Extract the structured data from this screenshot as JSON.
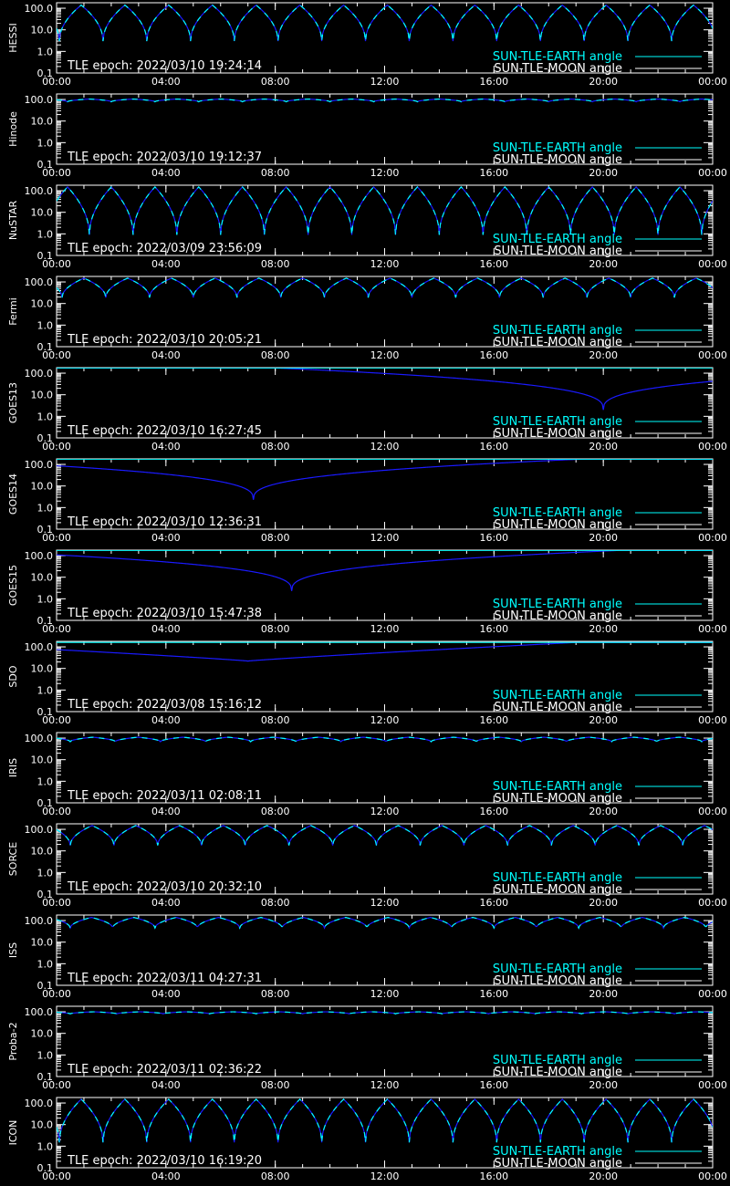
{
  "colors": {
    "background": "#000000",
    "axes": "#ffffff",
    "earth_angle": "#00ffff",
    "moon_angle": "#1a1aff",
    "moon_legend": "#ffffff"
  },
  "chart_data": [
    {
      "type": "line",
      "panel_label": "HESSI",
      "tle_epoch": "TLE epoch: 2022/03/10 19:24:14",
      "x_ticks": [
        "00:00",
        "04:00",
        "08:00",
        "12:00",
        "16:00",
        "20:00",
        "00:00"
      ],
      "y_ticks": [
        "100.0",
        "10.0",
        "1.0",
        "0.1"
      ],
      "y_scale": "log",
      "ylim": [
        0.1,
        180
      ],
      "xlim_hours": [
        0,
        24
      ],
      "legend_location": "bottom-right",
      "series": [
        {
          "name": "SUN-TLE-EARTH angle",
          "color": "#00ffff",
          "profile": "orbital_dips",
          "period_hours": 1.6,
          "phase_hours": 0.1,
          "min_value": 3.0,
          "max_value": 140
        },
        {
          "name": "SUN-TLE-MOON angle",
          "color": "#1a1aff",
          "profile": "same_as_earth"
        }
      ]
    },
    {
      "type": "line",
      "panel_label": "Hinode",
      "tle_epoch": "TLE epoch: 2022/03/10 19:12:37",
      "x_ticks": [
        "00:00",
        "04:00",
        "08:00",
        "12:00",
        "16:00",
        "20:00",
        "00:00"
      ],
      "y_ticks": [
        "100.0",
        "10.0",
        "1.0",
        "0.1"
      ],
      "y_scale": "log",
      "ylim": [
        0.1,
        180
      ],
      "xlim_hours": [
        0,
        24
      ],
      "legend_location": "bottom-right",
      "series": [
        {
          "name": "SUN-TLE-EARTH angle",
          "color": "#00ffff",
          "profile": "orbital_dips",
          "period_hours": 1.6,
          "phase_hours": 0.4,
          "min_value": 78,
          "max_value": 105
        },
        {
          "name": "SUN-TLE-MOON angle",
          "color": "#1a1aff",
          "profile": "same_as_earth"
        }
      ]
    },
    {
      "type": "line",
      "panel_label": "NuSTAR",
      "tle_epoch": "TLE epoch: 2022/03/09 23:56:09",
      "x_ticks": [
        "00:00",
        "04:00",
        "08:00",
        "12:00",
        "16:00",
        "20:00",
        "00:00"
      ],
      "y_ticks": [
        "100.0",
        "10.0",
        "1.0",
        "0.1"
      ],
      "y_scale": "log",
      "ylim": [
        0.1,
        180
      ],
      "xlim_hours": [
        0,
        24
      ],
      "legend_location": "bottom-right",
      "series": [
        {
          "name": "SUN-TLE-EARTH angle",
          "color": "#00ffff",
          "profile": "orbital_dips",
          "period_hours": 1.6,
          "phase_hours": 1.2,
          "min_value": 0.9,
          "max_value": 150
        },
        {
          "name": "SUN-TLE-MOON angle",
          "color": "#1a1aff",
          "profile": "same_as_earth"
        }
      ]
    },
    {
      "type": "line",
      "panel_label": "Fermi",
      "tle_epoch": "TLE epoch: 2022/03/10 20:05:21",
      "x_ticks": [
        "00:00",
        "04:00",
        "08:00",
        "12:00",
        "16:00",
        "20:00",
        "00:00"
      ],
      "y_ticks": [
        "100.0",
        "10.0",
        "1.0",
        "0.1"
      ],
      "y_scale": "log",
      "ylim": [
        0.1,
        180
      ],
      "xlim_hours": [
        0,
        24
      ],
      "legend_location": "bottom-right",
      "series": [
        {
          "name": "SUN-TLE-EARTH angle",
          "color": "#00ffff",
          "profile": "orbital_dips",
          "period_hours": 1.6,
          "phase_hours": 0.2,
          "min_value": 19,
          "max_value": 150
        },
        {
          "name": "SUN-TLE-MOON angle",
          "color": "#1a1aff",
          "profile": "same_as_earth"
        }
      ]
    },
    {
      "type": "line",
      "panel_label": "GOES13",
      "tle_epoch": "TLE epoch: 2022/03/10 16:27:45",
      "x_ticks": [
        "00:00",
        "04:00",
        "08:00",
        "12:00",
        "16:00",
        "20:00",
        "00:00"
      ],
      "y_ticks": [
        "100.0",
        "10.0",
        "1.0",
        "0.1"
      ],
      "y_scale": "log",
      "ylim": [
        0.1,
        180
      ],
      "xlim_hours": [
        0,
        24
      ],
      "legend_location": "bottom-right",
      "series": [
        {
          "name": "SUN-TLE-EARTH angle",
          "color": "#00ffff",
          "profile": "flat",
          "value": 175
        },
        {
          "name": "SUN-TLE-MOON angle",
          "color": "#1a1aff",
          "profile": "single_dip",
          "dip_hour": 20.0,
          "min_value": 2.0,
          "max_value": 175
        }
      ]
    },
    {
      "type": "line",
      "panel_label": "GOES14",
      "tle_epoch": "TLE epoch: 2022/03/10 12:36:31",
      "x_ticks": [
        "00:00",
        "04:00",
        "08:00",
        "12:00",
        "16:00",
        "20:00",
        "00:00"
      ],
      "y_ticks": [
        "100.0",
        "10.0",
        "1.0",
        "0.1"
      ],
      "y_scale": "log",
      "ylim": [
        0.1,
        180
      ],
      "xlim_hours": [
        0,
        24
      ],
      "legend_location": "bottom-right",
      "series": [
        {
          "name": "SUN-TLE-EARTH angle",
          "color": "#00ffff",
          "profile": "flat",
          "value": 175
        },
        {
          "name": "SUN-TLE-MOON angle",
          "color": "#1a1aff",
          "profile": "single_dip",
          "dip_hour": 7.2,
          "min_value": 2.3,
          "max_value": 175
        }
      ]
    },
    {
      "type": "line",
      "panel_label": "GOES15",
      "tle_epoch": "TLE epoch: 2022/03/10 15:47:38",
      "x_ticks": [
        "00:00",
        "04:00",
        "08:00",
        "12:00",
        "16:00",
        "20:00",
        "00:00"
      ],
      "y_ticks": [
        "100.0",
        "10.0",
        "1.0",
        "0.1"
      ],
      "y_scale": "log",
      "ylim": [
        0.1,
        180
      ],
      "xlim_hours": [
        0,
        24
      ],
      "legend_location": "bottom-right",
      "series": [
        {
          "name": "SUN-TLE-EARTH angle",
          "color": "#00ffff",
          "profile": "flat",
          "value": 175
        },
        {
          "name": "SUN-TLE-MOON angle",
          "color": "#1a1aff",
          "profile": "single_dip",
          "dip_hour": 8.6,
          "min_value": 2.3,
          "max_value": 175
        }
      ]
    },
    {
      "type": "line",
      "panel_label": "SDO",
      "tle_epoch": "TLE epoch: 2022/03/08 15:16:12",
      "x_ticks": [
        "00:00",
        "04:00",
        "08:00",
        "12:00",
        "16:00",
        "20:00",
        "00:00"
      ],
      "y_ticks": [
        "100.0",
        "10.0",
        "1.0",
        "0.1"
      ],
      "y_scale": "log",
      "ylim": [
        0.1,
        180
      ],
      "xlim_hours": [
        0,
        24
      ],
      "legend_location": "bottom-right",
      "series": [
        {
          "name": "SUN-TLE-EARTH angle",
          "color": "#00ffff",
          "profile": "flat",
          "value": 160
        },
        {
          "name": "SUN-TLE-MOON angle",
          "color": "#1a1aff",
          "profile": "shallow_dip",
          "dip_hour": 7.0,
          "min_value": 22,
          "max_value": 160
        }
      ]
    },
    {
      "type": "line",
      "panel_label": "IRIS",
      "tle_epoch": "TLE epoch: 2022/03/11 02:08:11",
      "x_ticks": [
        "00:00",
        "04:00",
        "08:00",
        "12:00",
        "16:00",
        "20:00",
        "00:00"
      ],
      "y_ticks": [
        "100.0",
        "10.0",
        "1.0",
        "0.1"
      ],
      "y_scale": "log",
      "ylim": [
        0.1,
        180
      ],
      "xlim_hours": [
        0,
        24
      ],
      "legend_location": "bottom-right",
      "series": [
        {
          "name": "SUN-TLE-EARTH angle",
          "color": "#00ffff",
          "profile": "orbital_dips",
          "period_hours": 1.65,
          "phase_hours": 0.5,
          "min_value": 68,
          "max_value": 110
        },
        {
          "name": "SUN-TLE-MOON angle",
          "color": "#1a1aff",
          "profile": "same_as_earth"
        }
      ]
    },
    {
      "type": "line",
      "panel_label": "SORCE",
      "tle_epoch": "TLE epoch: 2022/03/10 20:32:10",
      "x_ticks": [
        "00:00",
        "04:00",
        "08:00",
        "12:00",
        "16:00",
        "20:00",
        "00:00"
      ],
      "y_ticks": [
        "100.0",
        "10.0",
        "1.0",
        "0.1"
      ],
      "y_scale": "log",
      "ylim": [
        0.1,
        180
      ],
      "xlim_hours": [
        0,
        24
      ],
      "legend_location": "bottom-right",
      "series": [
        {
          "name": "SUN-TLE-EARTH angle",
          "color": "#00ffff",
          "profile": "orbital_dips",
          "period_hours": 1.6,
          "phase_hours": 0.5,
          "min_value": 18,
          "max_value": 150
        },
        {
          "name": "SUN-TLE-MOON angle",
          "color": "#1a1aff",
          "profile": "same_as_earth"
        }
      ]
    },
    {
      "type": "line",
      "panel_label": "ISS",
      "tle_epoch": "TLE epoch: 2022/03/11 04:27:31",
      "x_ticks": [
        "00:00",
        "04:00",
        "08:00",
        "12:00",
        "16:00",
        "20:00",
        "00:00"
      ],
      "y_ticks": [
        "100.0",
        "10.0",
        "1.0",
        "0.1"
      ],
      "y_scale": "log",
      "ylim": [
        0.1,
        180
      ],
      "xlim_hours": [
        0,
        24
      ],
      "legend_location": "bottom-right",
      "series": [
        {
          "name": "SUN-TLE-EARTH angle",
          "color": "#00ffff",
          "profile": "orbital_dips",
          "period_hours": 1.55,
          "phase_hours": 0.5,
          "min_value": 45,
          "max_value": 140
        },
        {
          "name": "SUN-TLE-MOON angle",
          "color": "#1a1aff",
          "profile": "same_as_earth"
        }
      ]
    },
    {
      "type": "line",
      "panel_label": "Proba-2",
      "tle_epoch": "TLE epoch: 2022/03/11 02:36:22",
      "x_ticks": [
        "00:00",
        "04:00",
        "08:00",
        "12:00",
        "16:00",
        "20:00",
        "00:00"
      ],
      "y_ticks": [
        "100.0",
        "10.0",
        "1.0",
        "0.1"
      ],
      "y_scale": "log",
      "ylim": [
        0.1,
        180
      ],
      "xlim_hours": [
        0,
        24
      ],
      "legend_location": "bottom-right",
      "series": [
        {
          "name": "SUN-TLE-EARTH angle",
          "color": "#00ffff",
          "profile": "orbital_dips",
          "period_hours": 1.7,
          "phase_hours": 0.5,
          "min_value": 80,
          "max_value": 100
        },
        {
          "name": "SUN-TLE-MOON angle",
          "color": "#1a1aff",
          "profile": "same_as_earth"
        }
      ]
    },
    {
      "type": "line",
      "panel_label": "ICON",
      "tle_epoch": "TLE epoch: 2022/03/10 16:19:20",
      "x_ticks": [
        "00:00",
        "04:00",
        "08:00",
        "12:00",
        "16:00",
        "20:00",
        "00:00"
      ],
      "y_ticks": [
        "100.0",
        "10.0",
        "1.0",
        "0.1"
      ],
      "y_scale": "log",
      "ylim": [
        0.1,
        180
      ],
      "xlim_hours": [
        0,
        24
      ],
      "legend_location": "bottom-right",
      "series": [
        {
          "name": "SUN-TLE-EARTH angle",
          "color": "#00ffff",
          "profile": "orbital_dips",
          "period_hours": 1.6,
          "phase_hours": 0.1,
          "min_value": 1.5,
          "max_value": 150
        },
        {
          "name": "SUN-TLE-MOON angle",
          "color": "#1a1aff",
          "profile": "same_as_earth"
        }
      ]
    }
  ]
}
